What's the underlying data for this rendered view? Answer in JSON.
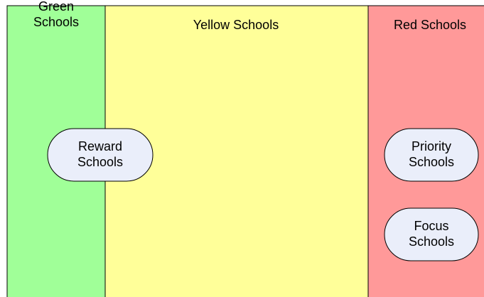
{
  "zones": [
    {
      "title": "Green Schools"
    },
    {
      "title": "Yellow Schools"
    },
    {
      "title": "Red Schools"
    }
  ],
  "nodes": [
    {
      "label": "Reward Schools"
    },
    {
      "label": "Priority Schools"
    },
    {
      "label": "Focus Schools"
    }
  ]
}
